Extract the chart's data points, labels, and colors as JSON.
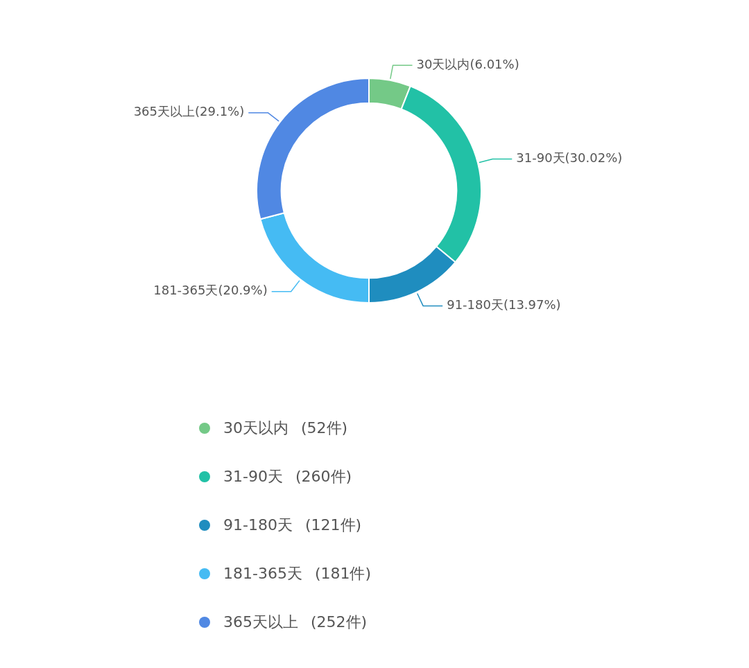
{
  "chart_data": {
    "type": "donut",
    "categories": [
      "30天以内",
      "31-90天",
      "91-180天",
      "181-365天",
      "365天以上"
    ],
    "values": [
      6.01,
      30.02,
      13.97,
      20.9,
      29.1
    ],
    "value_labels": [
      "(6.01%)",
      "(30.02%)",
      "(13.97%)",
      "(20.9%)",
      "(29.1%)"
    ],
    "colors": [
      "#74c987",
      "#22c1a6",
      "#1f8dbf",
      "#45bbf3",
      "#5088e3"
    ],
    "annotations": [
      "(52件)",
      "(260件)",
      "(121件)",
      "(181件)",
      "(252件)"
    ],
    "legend": "bottom"
  }
}
